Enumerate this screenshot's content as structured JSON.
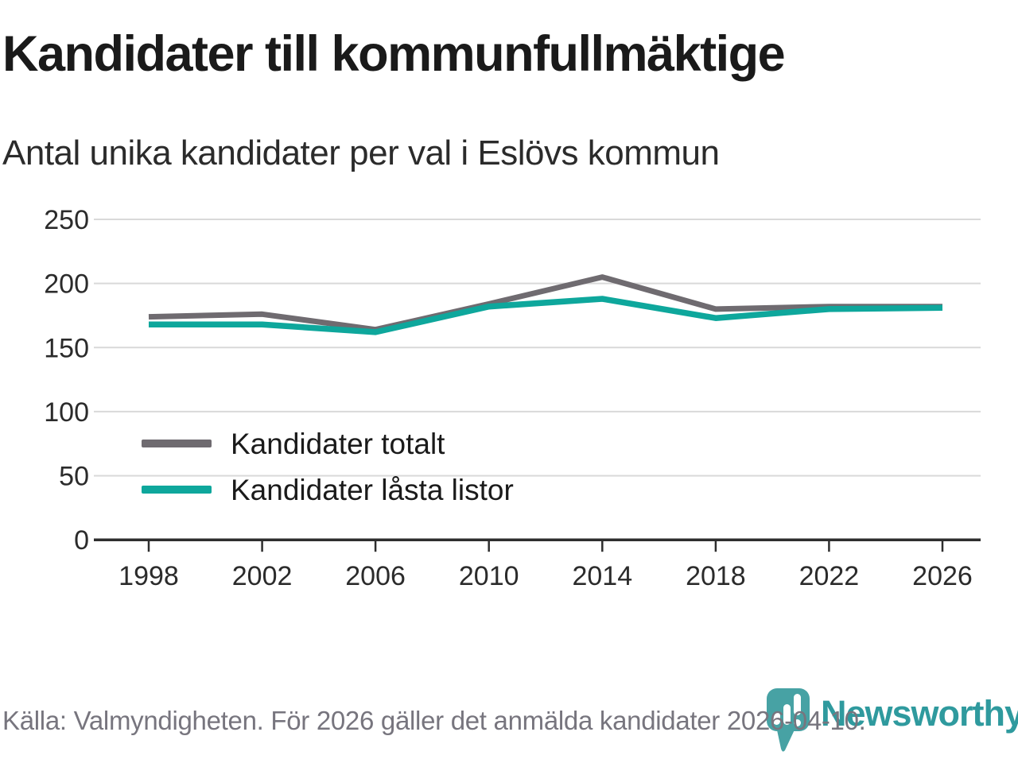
{
  "header": {
    "title": "Kandidater till kommunfullmäktige",
    "subtitle": "Antal unika kandidater per val i Eslövs kommun"
  },
  "chart_data": {
    "type": "line",
    "title": "Kandidater till kommunfullmäktige",
    "subtitle": "Antal unika kandidater per val i Eslövs kommun",
    "x": [
      1998,
      2002,
      2006,
      2010,
      2014,
      2018,
      2022,
      2026
    ],
    "series": [
      {
        "name": "Kandidater totalt",
        "color": "#6f6b70",
        "values": [
          174,
          176,
          164,
          184,
          205,
          180,
          182,
          182
        ]
      },
      {
        "name": "Kandidater låsta listor",
        "color": "#0ea79c",
        "values": [
          168,
          168,
          162,
          182,
          188,
          173,
          180,
          181
        ]
      }
    ],
    "xlabel": "",
    "ylabel": "",
    "ylim": [
      0,
      250
    ],
    "yticks": [
      0,
      50,
      100,
      150,
      200,
      250
    ],
    "grid": "horizontal",
    "gridline_color": "#d9d9d9",
    "axis_color": "#2e2e2e",
    "tick_label_color": "#2b2b2b",
    "legend_position": "inside-left"
  },
  "footer": {
    "source": "Källa: Valmyndigheten. För 2026 gäller det anmälda kandidater 2026-04-10."
  },
  "logo": {
    "text": "Newsworthy",
    "icon": "newsworthy-pin-barchart-icon",
    "icon_color": "#47a2a4",
    "text_color": "#2f9a9e"
  }
}
